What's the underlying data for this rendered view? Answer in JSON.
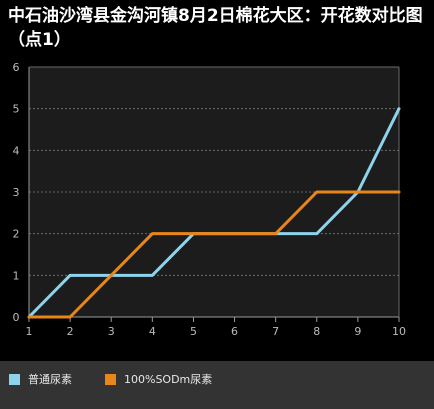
{
  "chart_data": {
    "type": "line",
    "title": "中石油沙湾县金沟河镇8月2日棉花大区：开花数对比图（点1）",
    "x": [
      1,
      2,
      3,
      4,
      5,
      6,
      7,
      8,
      9,
      10
    ],
    "xlim": [
      1,
      10
    ],
    "ylim": [
      0,
      6
    ],
    "yticks": [
      0,
      1,
      2,
      3,
      4,
      5,
      6
    ],
    "grid": true,
    "legend_position": "bottom",
    "series": [
      {
        "name": "普通尿素",
        "color": "#8ed3ec",
        "values": [
          0,
          1,
          1,
          1,
          2,
          2,
          2,
          2,
          3,
          5
        ]
      },
      {
        "name": "100%SODm尿素",
        "color": "#e8861a",
        "values": [
          0,
          0,
          1,
          2,
          2,
          2,
          2,
          3,
          3,
          3
        ]
      }
    ]
  }
}
